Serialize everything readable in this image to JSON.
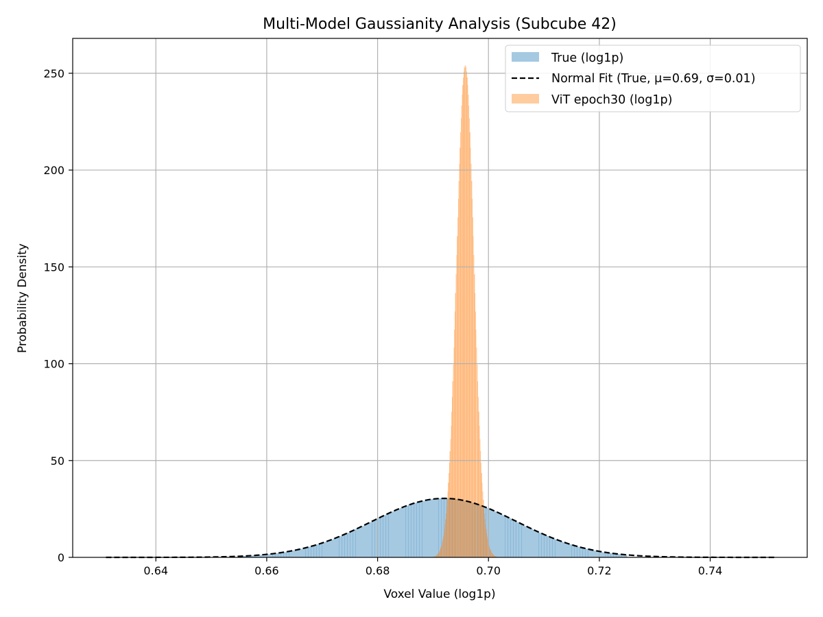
{
  "chart_data": {
    "type": "histogram",
    "title": "Multi-Model Gaussianity Analysis (Subcube 42)",
    "xlabel": "Voxel Value (log1p)",
    "ylabel": "Probability Density",
    "xlim": [
      0.625,
      0.7575
    ],
    "ylim": [
      0,
      268
    ],
    "xticks": [
      0.64,
      0.66,
      0.68,
      0.7,
      0.72,
      0.74
    ],
    "xtick_labels": [
      "0.64",
      "0.66",
      "0.68",
      "0.70",
      "0.72",
      "0.74"
    ],
    "yticks": [
      0,
      50,
      100,
      150,
      200,
      250
    ],
    "ytick_labels": [
      "0",
      "50",
      "100",
      "150",
      "200",
      "250"
    ],
    "grid": true,
    "legend_position": "top-right",
    "series": [
      {
        "name": "True (log1p)",
        "kind": "histogram",
        "color": "#1f77b4",
        "opacity": 0.4,
        "distribution": "normal",
        "mean": 0.692,
        "std": 0.0131,
        "range": [
          0.655,
          0.725
        ],
        "bin_width": 0.0005
      },
      {
        "name": "Normal Fit (True, μ=0.69, σ=0.01)",
        "kind": "line",
        "style": "dashed",
        "color": "#000000",
        "mean": 0.692,
        "std": 0.0131,
        "range": [
          0.631,
          0.752
        ]
      },
      {
        "name": "ViT epoch30 (log1p)",
        "kind": "histogram",
        "color": "#ff7f0e",
        "opacity": 0.4,
        "distribution": "normal",
        "mean": 0.6958,
        "std": 0.00157,
        "range": [
          0.6895,
          0.7015
        ],
        "bin_width": 0.0001
      }
    ]
  }
}
